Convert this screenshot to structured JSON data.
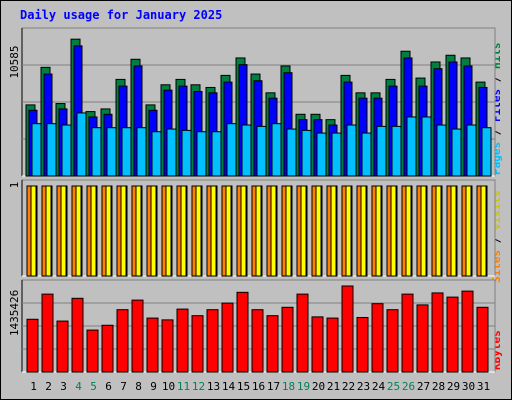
{
  "title": "Daily usage for January 2025",
  "colors": {
    "hits": "#008040",
    "files": "#0000ff",
    "pages": "#00c0ff",
    "visits": "#ff8000",
    "sites": "#ffff00",
    "kbytes": "#ff0000",
    "panel_bg": "#c0c0c0",
    "weekend_label": "#00805c"
  },
  "chart_data": [
    {
      "type": "bar",
      "title": "Daily usage for January 2025",
      "categories": [
        "1",
        "2",
        "3",
        "4",
        "5",
        "6",
        "7",
        "8",
        "9",
        "10",
        "11",
        "12",
        "13",
        "14",
        "15",
        "16",
        "17",
        "18",
        "19",
        "20",
        "21",
        "22",
        "23",
        "24",
        "25",
        "26",
        "27",
        "28",
        "29",
        "30",
        "31"
      ],
      "weekend_days": [
        "4",
        "5",
        "11",
        "12",
        "18",
        "19",
        "25",
        "26"
      ],
      "y_tick_label": "10585",
      "legend": [
        "Pages",
        "Files",
        "Hits"
      ],
      "ylim": [
        0,
        10585
      ],
      "series": [
        {
          "name": "Hits",
          "values": [
            5300,
            8100,
            5400,
            10200,
            4800,
            5000,
            7200,
            8700,
            5300,
            6800,
            7200,
            6800,
            6600,
            7500,
            8800,
            7600,
            6200,
            8200,
            4600,
            4600,
            4200,
            7500,
            6200,
            6200,
            7200,
            9300,
            7300,
            8500,
            9000,
            8800,
            7000
          ]
        },
        {
          "name": "Files",
          "values": [
            4900,
            7600,
            5000,
            9700,
            4400,
            4600,
            6700,
            8200,
            4900,
            6400,
            6700,
            6300,
            6200,
            7000,
            8300,
            7100,
            5800,
            7700,
            4200,
            4200,
            3800,
            7000,
            5800,
            5800,
            6700,
            8800,
            6700,
            8000,
            8500,
            8200,
            6600
          ]
        },
        {
          "name": "Pages",
          "values": [
            3900,
            3900,
            3800,
            4700,
            3600,
            3600,
            3600,
            3600,
            3300,
            3500,
            3400,
            3300,
            3300,
            3900,
            3800,
            3700,
            3900,
            3500,
            3400,
            3200,
            3200,
            3800,
            3200,
            3700,
            3700,
            4400,
            4400,
            3800,
            3500,
            3800,
            3600
          ]
        }
      ]
    },
    {
      "type": "bar",
      "categories": [
        "1",
        "2",
        "3",
        "4",
        "5",
        "6",
        "7",
        "8",
        "9",
        "10",
        "11",
        "12",
        "13",
        "14",
        "15",
        "16",
        "17",
        "18",
        "19",
        "20",
        "21",
        "22",
        "23",
        "24",
        "25",
        "26",
        "27",
        "28",
        "29",
        "30",
        "31"
      ],
      "y_tick_label": "1",
      "legend": [
        "Sites",
        "Visits"
      ],
      "ylim": [
        0,
        1
      ],
      "series": [
        {
          "name": "Visits",
          "values": [
            1,
            1,
            1,
            1,
            1,
            1,
            1,
            1,
            1,
            1,
            1,
            1,
            1,
            1,
            1,
            1,
            1,
            1,
            1,
            1,
            1,
            1,
            1,
            1,
            1,
            1,
            1,
            1,
            1,
            1,
            1
          ]
        },
        {
          "name": "Sites",
          "values": [
            1,
            1,
            1,
            1,
            1,
            1,
            1,
            1,
            1,
            1,
            1,
            1,
            1,
            1,
            1,
            1,
            1,
            1,
            1,
            1,
            1,
            1,
            1,
            1,
            1,
            1,
            1,
            1,
            1,
            1,
            1
          ]
        }
      ]
    },
    {
      "type": "bar",
      "categories": [
        "1",
        "2",
        "3",
        "4",
        "5",
        "6",
        "7",
        "8",
        "9",
        "10",
        "11",
        "12",
        "13",
        "14",
        "15",
        "16",
        "17",
        "18",
        "19",
        "20",
        "21",
        "22",
        "23",
        "24",
        "25",
        "26",
        "27",
        "28",
        "29",
        "30",
        "31"
      ],
      "y_tick_label": "1435426",
      "legend": [
        "KBytes"
      ],
      "ylim": [
        0,
        1435426
      ],
      "series": [
        {
          "name": "KBytes",
          "values": [
            880000,
            1300000,
            850000,
            1230000,
            700000,
            780000,
            1040000,
            1200000,
            900000,
            870000,
            1050000,
            940000,
            1040000,
            1150000,
            1330000,
            1040000,
            940000,
            1080000,
            1300000,
            920000,
            900000,
            1435426,
            910000,
            1140000,
            1040000,
            1300000,
            1120000,
            1320000,
            1250000,
            1350000,
            1080000
          ]
        }
      ]
    }
  ]
}
